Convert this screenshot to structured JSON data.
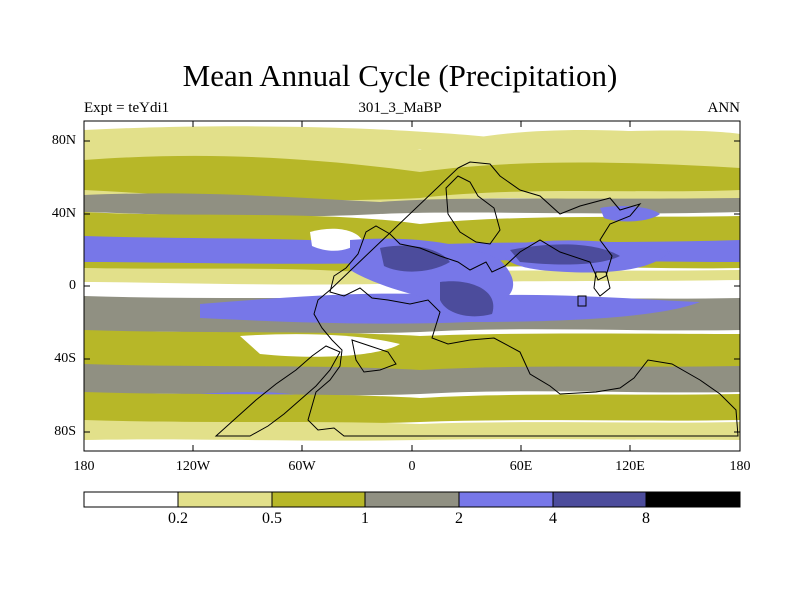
{
  "title": "Mean Annual Cycle (Precipitation)",
  "experiment_label": "Expt = teYdi1",
  "run_label": "301_3_MaBP",
  "season_label": "ANN",
  "y_ticks": [
    "80N",
    "40N",
    "0",
    "40S",
    "80S"
  ],
  "x_ticks": [
    "180",
    "120W",
    "60W",
    "0",
    "60E",
    "120E",
    "180"
  ],
  "colorbar": {
    "labels": [
      "0.2",
      "0.5",
      "1",
      "2",
      "4",
      "8"
    ],
    "colors": [
      "#ffffff",
      "#e2e08a",
      "#b7b728",
      "#909082",
      "#7777e8",
      "#4c4c9c",
      "#000000"
    ]
  },
  "colors": {
    "land_outline": "#000000"
  }
}
